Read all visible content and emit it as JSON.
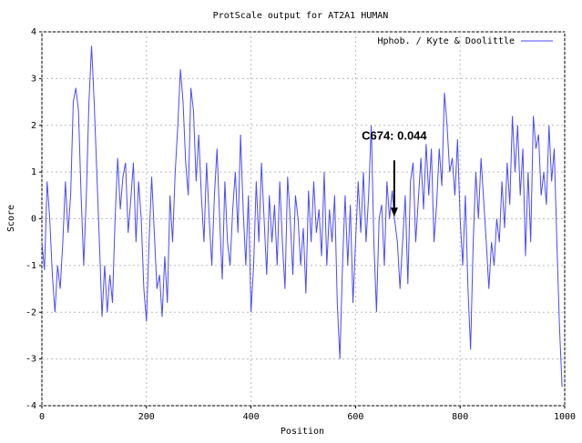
{
  "chart_data": {
    "type": "line",
    "title": "ProtScale output for AT2A1 HUMAN",
    "xlabel": "Position",
    "ylabel": "Score",
    "x": [
      0,
      5,
      10,
      15,
      20,
      25,
      30,
      35,
      40,
      45,
      50,
      55,
      60,
      65,
      70,
      75,
      80,
      85,
      90,
      95,
      100,
      105,
      110,
      115,
      120,
      125,
      130,
      135,
      140,
      145,
      150,
      155,
      160,
      165,
      170,
      175,
      180,
      185,
      190,
      195,
      200,
      205,
      210,
      215,
      220,
      225,
      230,
      235,
      240,
      245,
      250,
      255,
      260,
      265,
      270,
      275,
      280,
      285,
      290,
      295,
      300,
      305,
      310,
      315,
      320,
      325,
      330,
      335,
      340,
      345,
      350,
      355,
      360,
      365,
      370,
      375,
      380,
      385,
      390,
      395,
      400,
      405,
      410,
      415,
      420,
      425,
      430,
      435,
      440,
      445,
      450,
      455,
      460,
      465,
      470,
      475,
      480,
      485,
      490,
      495,
      500,
      505,
      510,
      515,
      520,
      525,
      530,
      535,
      540,
      545,
      550,
      555,
      560,
      565,
      570,
      575,
      580,
      585,
      590,
      595,
      600,
      605,
      610,
      615,
      620,
      625,
      630,
      635,
      640,
      645,
      650,
      655,
      660,
      665,
      670,
      674,
      680,
      685,
      690,
      695,
      700,
      705,
      710,
      715,
      720,
      725,
      730,
      735,
      740,
      745,
      750,
      755,
      760,
      765,
      770,
      775,
      780,
      785,
      790,
      795,
      800,
      805,
      810,
      815,
      820,
      825,
      830,
      835,
      840,
      845,
      850,
      855,
      860,
      865,
      870,
      875,
      880,
      885,
      890,
      895,
      900,
      905,
      910,
      915,
      920,
      925,
      930,
      935,
      940,
      945,
      950,
      955,
      960,
      965,
      970,
      975,
      980,
      985,
      990,
      995
    ],
    "series": [
      {
        "name": "Hphob. / Kyte & Doolittle",
        "color": "#4a4aff",
        "values": [
          -0.5,
          -1.1,
          0.8,
          0.0,
          -1.2,
          -2.0,
          -1.0,
          -1.5,
          -0.5,
          0.8,
          -0.3,
          0.5,
          2.5,
          2.8,
          2.3,
          0.5,
          -1.0,
          0.5,
          2.5,
          3.7,
          2.5,
          1.0,
          -0.5,
          -2.1,
          -1.0,
          -2.0,
          -1.2,
          -1.8,
          0.0,
          1.3,
          0.2,
          0.9,
          1.2,
          -0.3,
          0.4,
          1.2,
          -0.5,
          0.8,
          0.0,
          -1.5,
          -2.2,
          -0.5,
          0.9,
          -0.3,
          -1.5,
          -1.2,
          -2.1,
          -0.8,
          -1.8,
          0.5,
          -0.5,
          1.0,
          2.0,
          3.2,
          2.5,
          1.2,
          0.5,
          2.8,
          2.3,
          0.8,
          1.8,
          0.5,
          -0.5,
          1.2,
          0.0,
          -1.0,
          0.5,
          1.5,
          0.0,
          -1.3,
          0.8,
          -0.5,
          -1.0,
          0.2,
          1.0,
          -0.3,
          1.8,
          0.2,
          -1.0,
          0.5,
          -2.0,
          -1.0,
          0.8,
          -0.5,
          1.2,
          0.0,
          -1.2,
          0.5,
          -0.5,
          0.3,
          -1.0,
          0.8,
          -0.5,
          -1.5,
          0.9,
          0.0,
          -1.2,
          0.5,
          0.0,
          -1.0,
          -0.2,
          -1.6,
          0.6,
          -0.5,
          0.8,
          -0.3,
          0.2,
          -0.8,
          1.0,
          -1.0,
          0.2,
          -0.5,
          0.5,
          -1.8,
          -3.0,
          -1.0,
          0.5,
          -1.0,
          0.3,
          -1.8,
          -0.5,
          0.8,
          -0.3,
          1.0,
          -0.5,
          0.5,
          2.0,
          -0.5,
          -2.0,
          0.0,
          0.3,
          -1.0,
          0.8,
          0.0,
          0.6,
          0.044,
          -0.5,
          -1.5,
          -0.5,
          0.5,
          -1.4,
          0.8,
          1.2,
          -0.5,
          0.4,
          1.3,
          0.2,
          1.6,
          0.5,
          1.5,
          -0.5,
          0.3,
          1.5,
          0.7,
          2.7,
          2.0,
          1.0,
          1.3,
          0.5,
          1.7,
          0.0,
          -1.0,
          0.5,
          -1.5,
          -2.8,
          -0.5,
          1.0,
          0.0,
          1.3,
          0.4,
          -0.5,
          -1.5,
          -0.5,
          -1.0,
          0.0,
          -0.5,
          0.8,
          -0.2,
          1.2,
          0.3,
          2.2,
          1.0,
          2.0,
          0.5,
          1.5,
          -0.8,
          1.0,
          -0.5,
          2.2,
          1.5,
          1.8,
          0.5,
          1.0,
          0.3,
          2.0,
          0.8,
          1.5,
          -0.5,
          -2.3,
          -3.6
        ]
      }
    ],
    "xlim": [
      0,
      1000
    ],
    "ylim": [
      -4,
      4
    ],
    "xticks": [
      0,
      200,
      400,
      600,
      800,
      1000
    ],
    "yticks": [
      -4,
      -3,
      -2,
      -1,
      0,
      1,
      2,
      3,
      4
    ],
    "grid": true,
    "legend": "top-right",
    "annotations": [
      {
        "text": "C674: 0.044",
        "x": 674,
        "y": 0.044
      }
    ]
  }
}
